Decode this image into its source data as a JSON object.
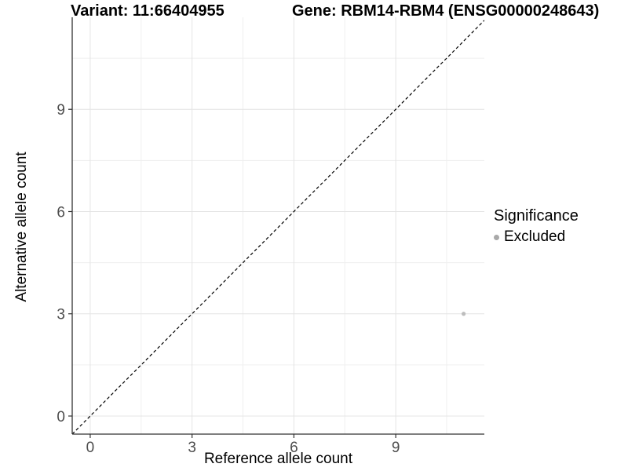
{
  "titles": {
    "variant": "Variant: 11:66404955",
    "gene": "Gene: RBM14-RBM4 (ENSG00000248643)"
  },
  "chart_data": {
    "type": "scatter",
    "xlabel": "Reference allele count",
    "ylabel": "Alternative allele count",
    "xlim": [
      -0.53,
      11.61
    ],
    "ylim": [
      -0.53,
      11.7
    ],
    "xticks": [
      0,
      3,
      6,
      9
    ],
    "yticks": [
      0,
      3,
      6,
      9
    ],
    "xticks_minor": [
      1.5,
      4.5,
      7.5,
      10.5
    ],
    "yticks_minor": [
      1.5,
      4.5,
      7.5,
      10.5
    ],
    "grid": true,
    "identity_line": {
      "slope": 1,
      "intercept": 0,
      "style": "dashed",
      "color": "#000000"
    },
    "series": [
      {
        "name": "Excluded",
        "color": "#bdbdbd",
        "points": [
          {
            "x": 11,
            "y": 3
          }
        ]
      }
    ],
    "legend": {
      "position": "right",
      "title": "Significance",
      "items": [
        {
          "label": "Excluded",
          "color": "#a9a9a9"
        }
      ]
    },
    "colors": {
      "axis_line": "#333333",
      "tick_label": "#4d4d4d",
      "grid_major": "#e4e4e4",
      "grid_minor": "#efefef",
      "background": "#ffffff"
    }
  }
}
